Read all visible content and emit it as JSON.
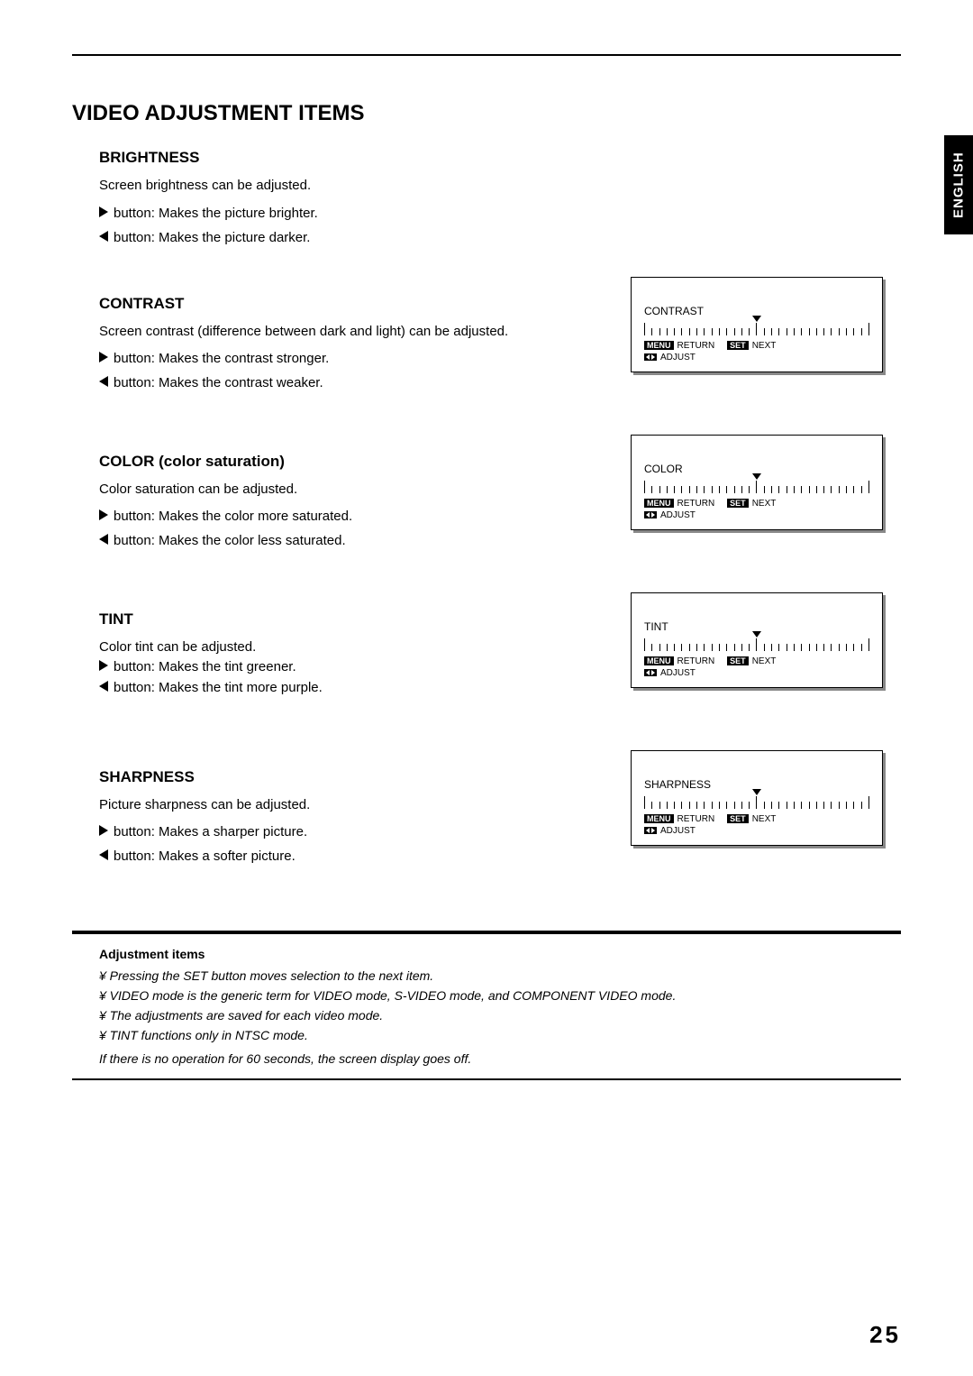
{
  "side_tab": "ENGLISH",
  "main_heading": "VIDEO ADJUSTMENT ITEMS",
  "sections": {
    "brightness": {
      "heading": "BRIGHTNESS",
      "desc": "Screen brightness can be adjusted.",
      "right_btn": "button: Makes the picture brighter.",
      "left_btn": "button: Makes the picture darker."
    },
    "contrast": {
      "heading": "CONTRAST",
      "desc": "Screen contrast (difference between dark and light) can be adjusted.",
      "right_btn": "button: Makes the contrast stronger.",
      "left_btn": "button: Makes the contrast weaker.",
      "osd_label": "CONTRAST"
    },
    "color": {
      "heading": "COLOR  (color saturation)",
      "desc": "Color saturation can be adjusted.",
      "right_btn": "button: Makes the color more saturated.",
      "left_btn": "button: Makes the  color less saturated.",
      "osd_label": "COLOR"
    },
    "tint": {
      "heading": "TINT",
      "desc": "Color tint can be adjusted.",
      "right_btn": "button: Makes the tint greener.",
      "left_btn": "button: Makes the tint more purple.",
      "osd_label": "TINT"
    },
    "sharpness": {
      "heading": "SHARPNESS",
      "desc": "Picture sharpness can be adjusted.",
      "right_btn": "button: Makes a sharper picture.",
      "left_btn": "button: Makes a softer picture.",
      "osd_label": "SHARPNESS"
    }
  },
  "osd_buttons": {
    "menu": "MENU",
    "return": "RETURN",
    "set": "SET",
    "next": "NEXT",
    "adjust": "ADJUST"
  },
  "footer": {
    "title": "Adjustment items",
    "items": [
      "¥  Pressing the SET button moves selection to the next item.",
      "¥  VIDEO mode is the generic term for VIDEO mode, S-VIDEO mode, and COMPONENT VIDEO mode.",
      "¥  The adjustments are saved for each video mode.",
      "¥  TINT functions only in NTSC mode."
    ],
    "note": "If there is no operation for 60 seconds, the screen display goes off."
  },
  "page_number": "25",
  "osd_scale": {
    "tick_count": 31,
    "tall_positions": [
      0,
      15,
      30
    ],
    "marker_position_pct": 50,
    "scale_color": "#000000"
  },
  "colors": {
    "text": "#000000",
    "background": "#ffffff",
    "shadow": "#888888"
  }
}
